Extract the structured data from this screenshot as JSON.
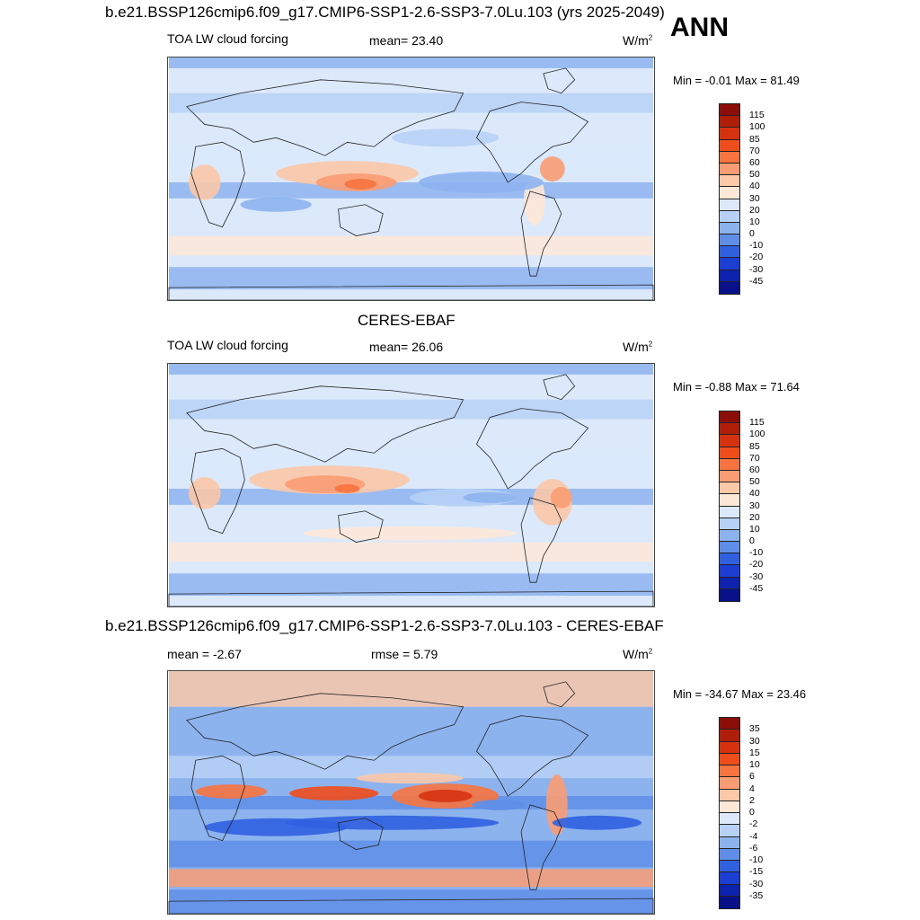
{
  "title_top": "b.e21.BSSP126cmip6.f09_g17.CMIP6-SSP1-2.6-SSP3-7.0Lu.103 (yrs 2025-2049)",
  "season": "ANN",
  "panel1": {
    "variable": "TOA LW cloud forcing",
    "mean_text": "mean=  23.40",
    "units": "W/m",
    "units_exp": "2",
    "minmax": "Min =  -0.01 Max =  81.49"
  },
  "title_mid": "CERES-EBAF",
  "panel2": {
    "variable": "TOA LW cloud forcing",
    "mean_text": "mean=  26.06",
    "units": "W/m",
    "units_exp": "2",
    "minmax": "Min =  -0.88 Max =  71.64"
  },
  "title_diff": "b.e21.BSSP126cmip6.f09_g17.CMIP6-SSP1-2.6-SSP3-7.0Lu.103 - CERES-EBAF",
  "panel3": {
    "mean_text": "mean =  -2.67",
    "rmse_text": "rmse =   5.79",
    "units": "W/m",
    "units_exp": "2",
    "minmax": "Min = -34.67 Max =  23.46"
  },
  "colorbar_main": {
    "labels": [
      "115",
      "100",
      "85",
      "70",
      "60",
      "50",
      "40",
      "30",
      "20",
      "10",
      "0",
      "-10",
      "-20",
      "-30",
      "-45"
    ],
    "colors": [
      "#8b0f08",
      "#b01e0a",
      "#d63210",
      "#f04d1c",
      "#f7733f",
      "#f99c73",
      "#fbc8a8",
      "#fde8d8",
      "#dbe9fb",
      "#b7d1f6",
      "#8db3ef",
      "#5f8ee8",
      "#3060e0",
      "#1c3ed3",
      "#0e22b0",
      "#08118a"
    ]
  },
  "colorbar_diff": {
    "labels": [
      "35",
      "30",
      "15",
      "10",
      "6",
      "4",
      "2",
      "0",
      "-2",
      "-4",
      "-6",
      "-10",
      "-15",
      "-30",
      "-35"
    ],
    "colors": [
      "#8b0f08",
      "#b01e0a",
      "#d63210",
      "#f04d1c",
      "#f7733f",
      "#f99c73",
      "#fbc8a8",
      "#fde8d8",
      "#dbe9fb",
      "#b7d1f6",
      "#8db3ef",
      "#5f8ee8",
      "#3060e0",
      "#1c3ed3",
      "#0e22b0",
      "#08118a"
    ]
  }
}
